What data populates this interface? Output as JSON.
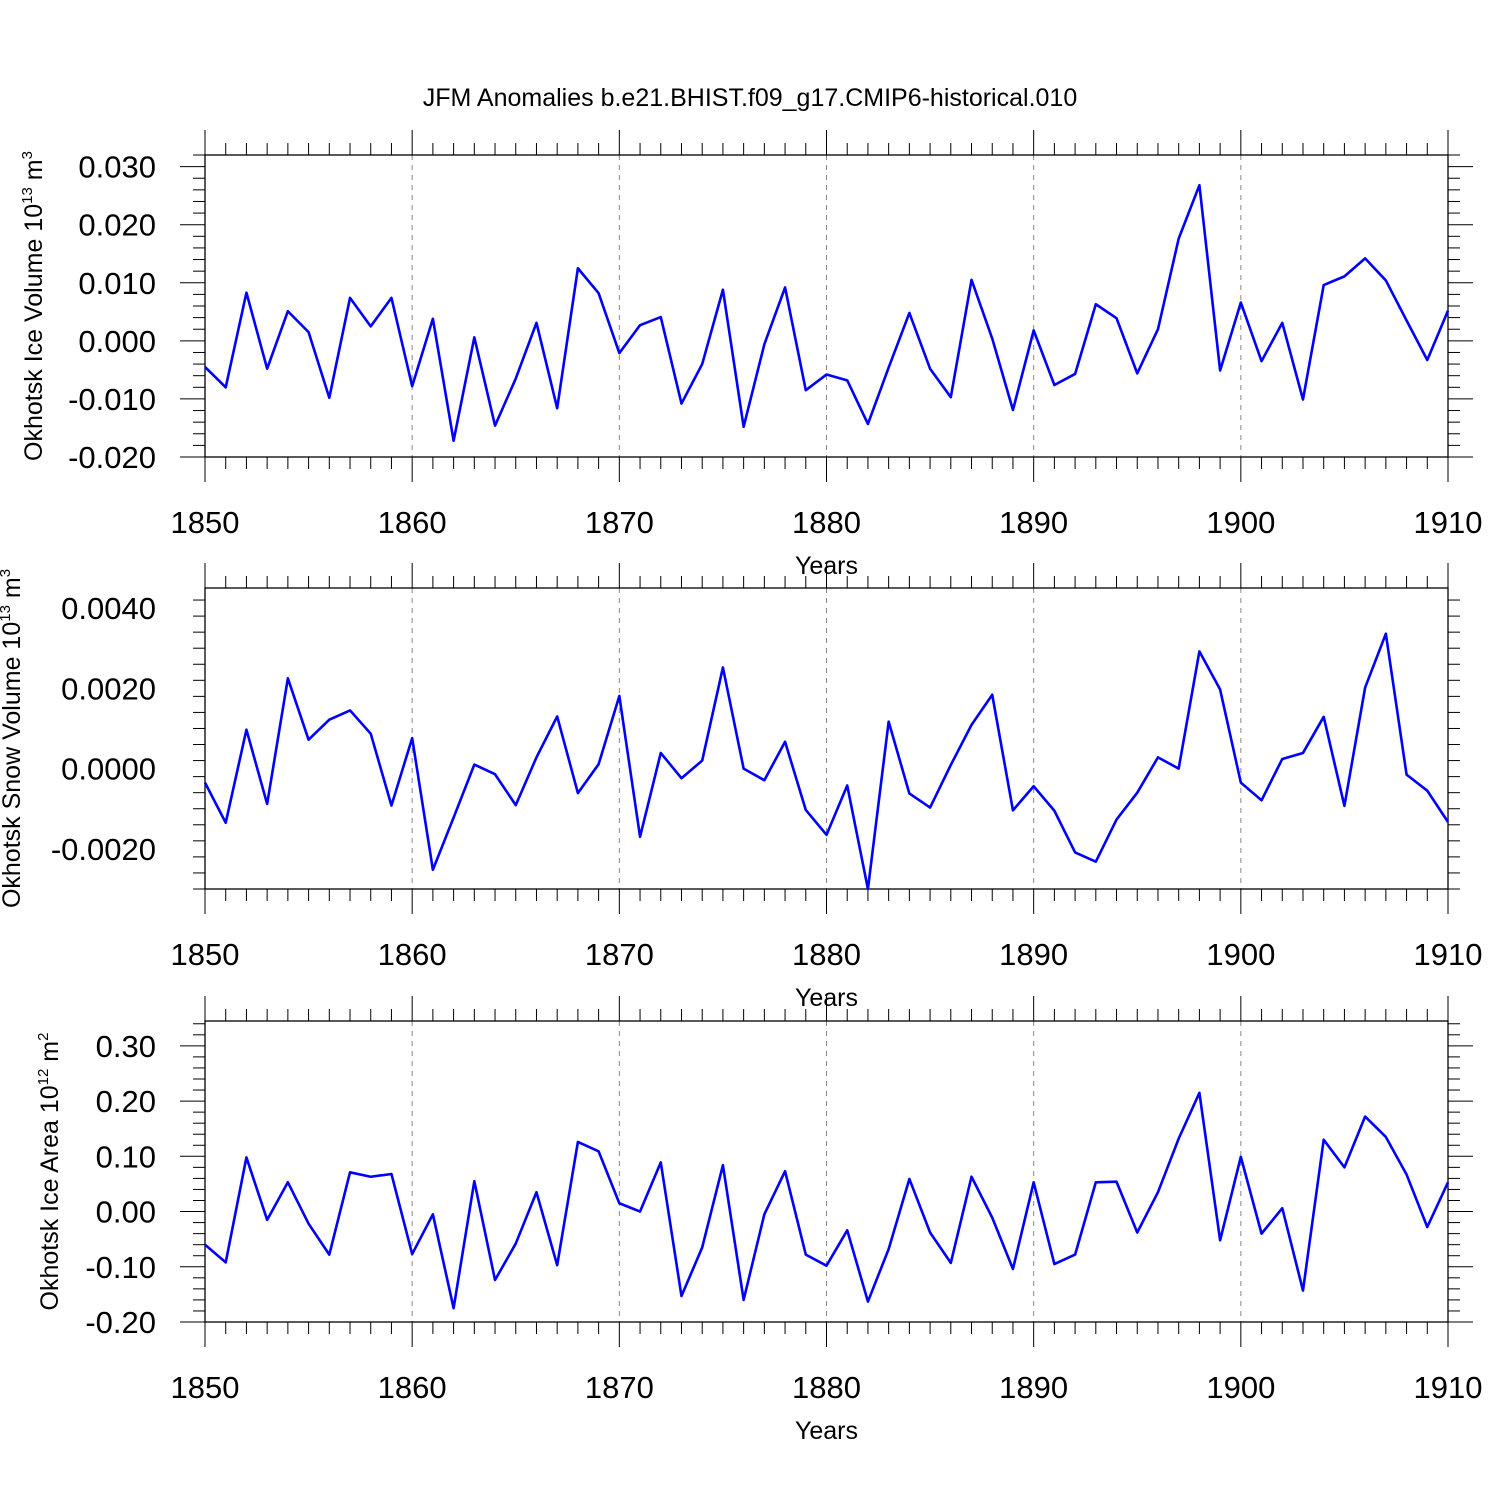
{
  "title": "JFM Anomalies b.e21.BHIST.f09_g17.CMIP6-historical.010",
  "colors": {
    "series": "#0000ff",
    "axis": "#000000",
    "grid": "#888888"
  },
  "chart_data": [
    {
      "type": "line",
      "ylabel": {
        "text": "Okhotsk Ice Volume 10",
        "sup1": "13",
        "unit": " m",
        "sup2": "3"
      },
      "xlabel": "Years",
      "xlim": [
        1850,
        1910
      ],
      "ylim": [
        -0.02,
        0.032
      ],
      "yticks": [
        -0.02,
        -0.01,
        0.0,
        0.01,
        0.02,
        0.03
      ],
      "ytick_labels": [
        "-0.020",
        "-0.010",
        "0.000",
        "0.010",
        "0.020",
        "0.030"
      ],
      "xticks": [
        1850,
        1860,
        1870,
        1880,
        1890,
        1900,
        1910
      ],
      "xtick_labels": [
        "1850",
        "1860",
        "1870",
        "1880",
        "1890",
        "1900",
        "1910"
      ],
      "grid": "vertical dashed at decades",
      "series": [
        {
          "name": "Okhotsk Ice Volume",
          "x": [
            1850,
            1851,
            1852,
            1853,
            1854,
            1855,
            1856,
            1857,
            1858,
            1859,
            1860,
            1861,
            1862,
            1863,
            1864,
            1865,
            1866,
            1867,
            1868,
            1869,
            1870,
            1871,
            1872,
            1873,
            1874,
            1875,
            1876,
            1877,
            1878,
            1879,
            1880,
            1881,
            1882,
            1883,
            1884,
            1885,
            1886,
            1887,
            1888,
            1889,
            1890,
            1891,
            1892,
            1893,
            1894,
            1895,
            1896,
            1897,
            1898,
            1899,
            1900,
            1901,
            1902,
            1903,
            1904,
            1905,
            1906,
            1907,
            1908,
            1909,
            1910
          ],
          "values": [
            -0.0045,
            -0.008,
            0.0083,
            -0.0048,
            0.0051,
            0.0015,
            -0.0098,
            0.0074,
            0.0025,
            0.0074,
            -0.0078,
            0.0038,
            -0.0172,
            0.0006,
            -0.0146,
            -0.0065,
            0.0031,
            -0.0116,
            0.0125,
            0.0082,
            -0.0021,
            0.0027,
            0.0041,
            -0.0108,
            -0.004,
            0.0088,
            -0.0148,
            -0.0006,
            0.0092,
            -0.0085,
            -0.0058,
            -0.0068,
            -0.0143,
            -0.0046,
            0.0048,
            -0.0048,
            -0.0097,
            0.0105,
            0.0004,
            -0.0119,
            0.0018,
            -0.0076,
            -0.0057,
            0.0063,
            0.0039,
            -0.0056,
            0.002,
            0.0176,
            0.0268,
            -0.0051,
            0.0066,
            -0.0035,
            0.0031,
            -0.0101,
            0.0096,
            0.0111,
            0.0142,
            0.0104,
            0.0035,
            -0.0033,
            0.0052
          ]
        }
      ]
    },
    {
      "type": "line",
      "ylabel": {
        "text": "Okhotsk Snow Volume 10",
        "sup1": "13",
        "unit": " m",
        "sup2": "3"
      },
      "xlabel": "Years",
      "xlim": [
        1850,
        1910
      ],
      "ylim": [
        -0.003,
        0.0045
      ],
      "yticks": [
        -0.002,
        0.0,
        0.002,
        0.004
      ],
      "ytick_labels": [
        "-0.0020",
        "0.0000",
        "0.0020",
        "0.0040"
      ],
      "xticks": [
        1850,
        1860,
        1870,
        1880,
        1890,
        1900,
        1910
      ],
      "xtick_labels": [
        "1850",
        "1860",
        "1870",
        "1880",
        "1890",
        "1900",
        "1910"
      ],
      "grid": "vertical dashed at decades",
      "series": [
        {
          "name": "Okhotsk Snow Volume",
          "x": [
            1850,
            1851,
            1852,
            1853,
            1854,
            1855,
            1856,
            1857,
            1858,
            1859,
            1860,
            1861,
            1862,
            1863,
            1864,
            1865,
            1866,
            1867,
            1868,
            1869,
            1870,
            1871,
            1872,
            1873,
            1874,
            1875,
            1876,
            1877,
            1878,
            1879,
            1880,
            1881,
            1882,
            1883,
            1884,
            1885,
            1886,
            1887,
            1888,
            1889,
            1890,
            1891,
            1892,
            1893,
            1894,
            1895,
            1896,
            1897,
            1898,
            1899,
            1900,
            1901,
            1902,
            1903,
            1904,
            1905,
            1906,
            1907,
            1908,
            1909,
            1910
          ],
          "values": [
            -0.00035,
            -0.00135,
            0.00097,
            -0.00088,
            0.00225,
            0.00072,
            0.00122,
            0.00145,
            0.00087,
            -0.00092,
            0.00076,
            -0.00252,
            -0.00122,
            0.0001,
            -0.00014,
            -0.00091,
            0.00028,
            0.0013,
            -0.00061,
            0.00011,
            0.00181,
            -0.0017,
            0.00039,
            -0.00024,
            0.0002,
            0.00252,
            0.0,
            -0.00029,
            0.00067,
            -0.00103,
            -0.00165,
            -0.00042,
            -0.003,
            0.00117,
            -0.00062,
            -0.00097,
            9e-05,
            0.00109,
            0.00184,
            -0.00104,
            -0.00044,
            -0.00105,
            -0.00209,
            -0.00232,
            -0.00127,
            -0.0006,
            0.00028,
            0.0,
            0.00292,
            0.00197,
            -0.00035,
            -0.00079,
            0.00024,
            0.00039,
            0.00129,
            -0.00093,
            0.00202,
            0.00336,
            -0.00015,
            -0.00055,
            -0.00133
          ]
        }
      ]
    },
    {
      "type": "line",
      "ylabel": {
        "text": "Okhotsk Ice Area 10",
        "sup1": "12",
        "unit": " m",
        "sup2": "2"
      },
      "xlabel": "Years",
      "xlim": [
        1850,
        1910
      ],
      "ylim": [
        -0.2,
        0.345
      ],
      "yticks": [
        -0.2,
        -0.1,
        0.0,
        0.1,
        0.2,
        0.3
      ],
      "ytick_labels": [
        "-0.20",
        "-0.10",
        "0.00",
        "0.10",
        "0.20",
        "0.30"
      ],
      "xticks": [
        1850,
        1860,
        1870,
        1880,
        1890,
        1900,
        1910
      ],
      "xtick_labels": [
        "1850",
        "1860",
        "1870",
        "1880",
        "1890",
        "1900",
        "1910"
      ],
      "grid": "vertical dashed at decades",
      "series": [
        {
          "name": "Okhotsk Ice Area",
          "x": [
            1850,
            1851,
            1852,
            1853,
            1854,
            1855,
            1856,
            1857,
            1858,
            1859,
            1860,
            1861,
            1862,
            1863,
            1864,
            1865,
            1866,
            1867,
            1868,
            1869,
            1870,
            1871,
            1872,
            1873,
            1874,
            1875,
            1876,
            1877,
            1878,
            1879,
            1880,
            1881,
            1882,
            1883,
            1884,
            1885,
            1886,
            1887,
            1888,
            1889,
            1890,
            1891,
            1892,
            1893,
            1894,
            1895,
            1896,
            1897,
            1898,
            1899,
            1900,
            1901,
            1902,
            1903,
            1904,
            1905,
            1906,
            1907,
            1908,
            1909,
            1910
          ],
          "values": [
            -0.06,
            -0.092,
            0.098,
            -0.015,
            0.053,
            -0.022,
            -0.078,
            0.071,
            0.063,
            0.068,
            -0.077,
            -0.005,
            -0.175,
            0.055,
            -0.124,
            -0.058,
            0.035,
            -0.097,
            0.126,
            0.109,
            0.015,
            0.0,
            0.089,
            -0.153,
            -0.065,
            0.084,
            -0.16,
            -0.005,
            0.073,
            -0.078,
            -0.098,
            -0.034,
            -0.163,
            -0.068,
            0.059,
            -0.038,
            -0.093,
            0.063,
            -0.011,
            -0.104,
            0.053,
            -0.095,
            -0.078,
            0.053,
            0.054,
            -0.038,
            0.035,
            0.132,
            0.215,
            -0.052,
            0.099,
            -0.04,
            0.006,
            -0.143,
            0.13,
            0.08,
            0.172,
            0.135,
            0.067,
            -0.028,
            0.053
          ]
        }
      ]
    }
  ]
}
